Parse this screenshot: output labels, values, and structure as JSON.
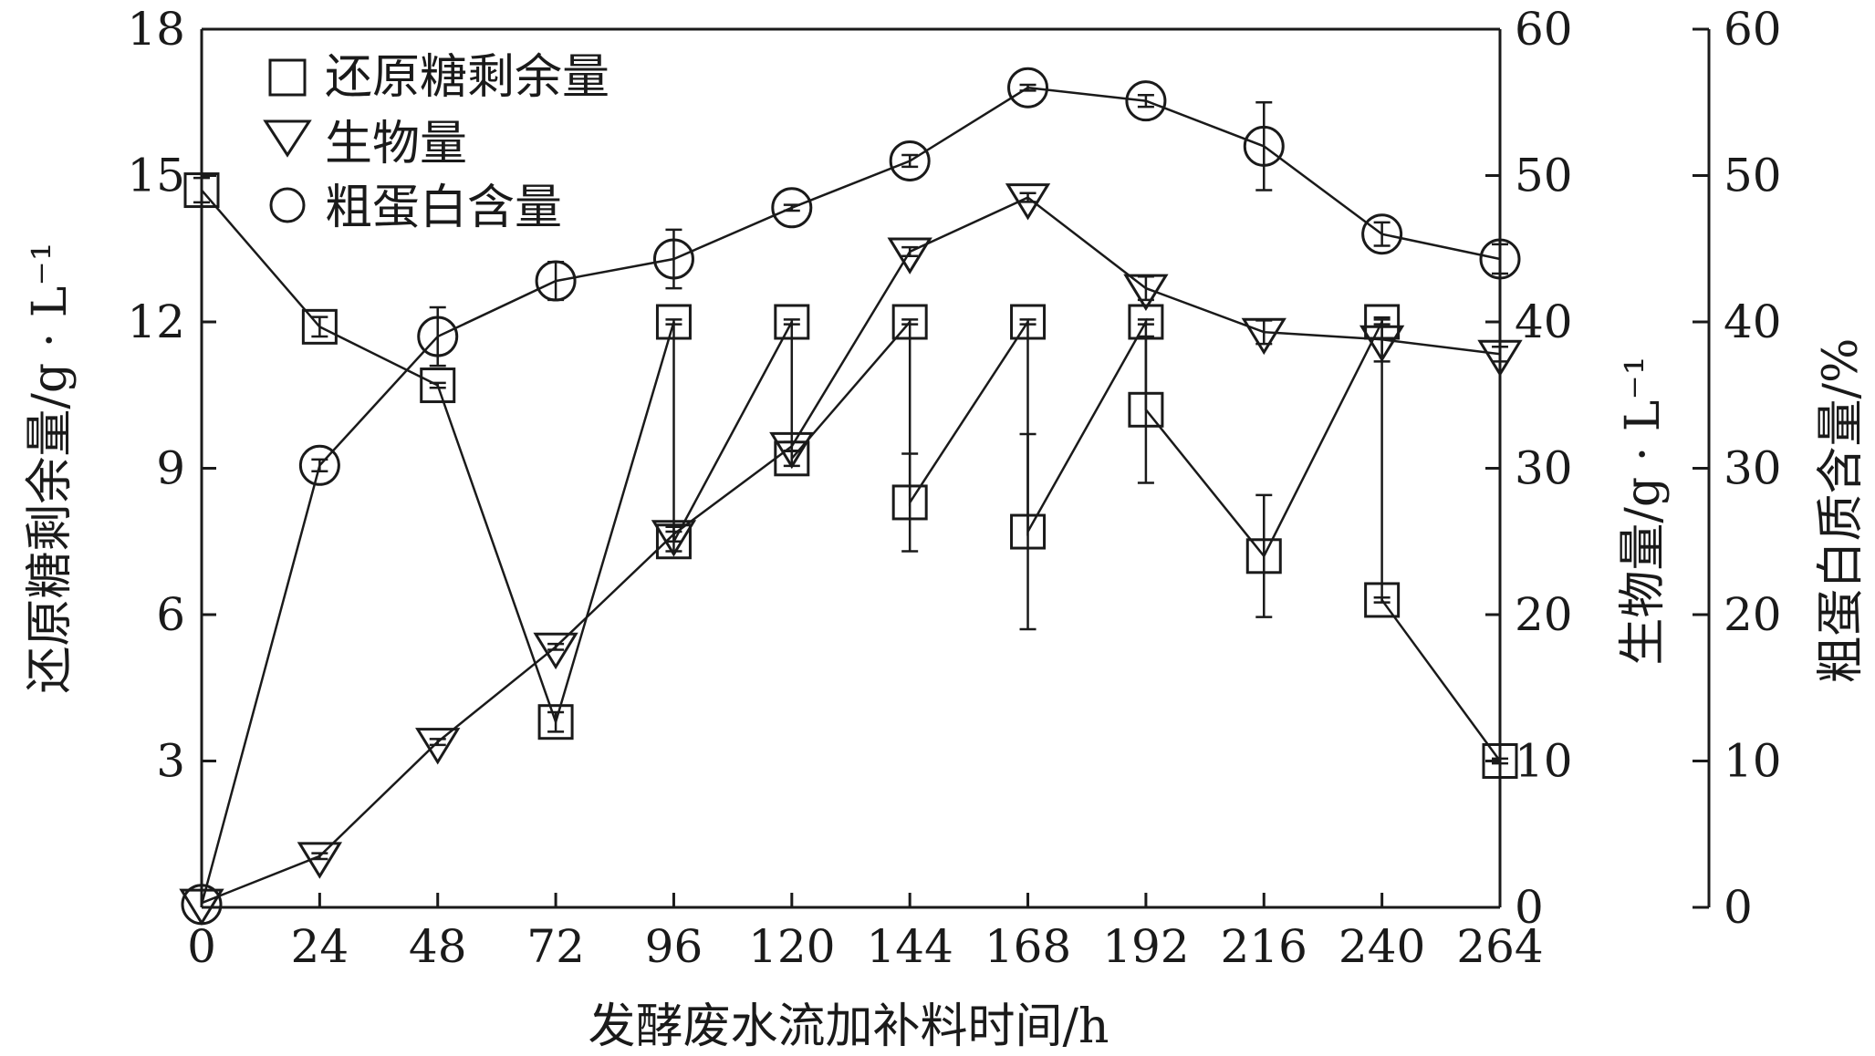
{
  "chart_data": {
    "type": "scatter",
    "xlabel": "发酵废水流加补料时间/h",
    "ylabel_left": "还原糖剩余量/g · L⁻¹",
    "ylabel_right1": "生物量/g · L⁻¹",
    "ylabel_right2": "粗蛋白质含量/%",
    "x": [
      0,
      24,
      48,
      72,
      96,
      120,
      144,
      168,
      192,
      216,
      240,
      264
    ],
    "x_ticks": [
      "0",
      "24",
      "48",
      "72",
      "96",
      "120",
      "144",
      "168",
      "192",
      "216",
      "240",
      "264"
    ],
    "xlim": [
      0,
      264
    ],
    "y_left": {
      "lim": [
        0,
        18
      ],
      "ticks": [
        "3",
        "6",
        "9",
        "12",
        "15",
        "18"
      ]
    },
    "y_right1": {
      "lim": [
        0,
        60
      ],
      "ticks": [
        "0",
        "10",
        "20",
        "30",
        "40",
        "50",
        "60"
      ]
    },
    "y_right2": {
      "lim": [
        0,
        60
      ],
      "ticks": [
        "0",
        "10",
        "20",
        "30",
        "40",
        "50",
        "60"
      ]
    },
    "legend_position": "top-left",
    "series": [
      {
        "name": "还原糖剩余量",
        "marker": "square",
        "axis": "left",
        "points": [
          {
            "x": 0,
            "y": 14.7,
            "err": 0.25
          },
          {
            "x": 24,
            "y": 11.9,
            "err": 0.2
          },
          {
            "x": 48,
            "y": 10.7,
            "err": 0.05
          },
          {
            "x": 72,
            "y": 3.8,
            "err": 0.2
          },
          {
            "x": 96,
            "y": 12.0,
            "err": 0.05
          },
          {
            "x": 96,
            "y": 7.5,
            "err": 0.2
          },
          {
            "x": 120,
            "y": 12.0,
            "err": 0.05
          },
          {
            "x": 120,
            "y": 9.2,
            "err": 0.15
          },
          {
            "x": 144,
            "y": 12.0,
            "err": 0.05
          },
          {
            "x": 144,
            "y": 8.3,
            "err": 1.0
          },
          {
            "x": 168,
            "y": 12.0,
            "err": 0.05
          },
          {
            "x": 168,
            "y": 7.7,
            "err": 2.0
          },
          {
            "x": 192,
            "y": 12.0,
            "err": 0.05
          },
          {
            "x": 192,
            "y": 10.2,
            "err": 1.5
          },
          {
            "x": 216,
            "y": 7.2,
            "err": 1.25
          },
          {
            "x": 240,
            "y": 12.0,
            "err": 0.05
          },
          {
            "x": 240,
            "y": 6.3,
            "err": 0.05
          },
          {
            "x": 264,
            "y": 3.0,
            "err": 0.05
          }
        ],
        "path": [
          [
            0,
            14.7
          ],
          [
            24,
            11.9
          ],
          [
            48,
            10.7
          ],
          [
            72,
            3.8
          ],
          [
            96,
            12.0
          ],
          [
            96,
            7.5
          ],
          [
            120,
            12.0
          ],
          [
            120,
            9.2
          ],
          [
            144,
            12.0
          ],
          [
            144,
            8.3
          ],
          [
            168,
            12.0
          ],
          [
            168,
            7.7
          ],
          [
            192,
            12.0
          ],
          [
            192,
            10.2
          ],
          [
            216,
            7.2
          ],
          [
            240,
            12.0
          ],
          [
            240,
            6.3
          ],
          [
            264,
            3.0
          ]
        ]
      },
      {
        "name": "生物量",
        "marker": "triangle-down",
        "axis": "right1",
        "points": [
          {
            "x": 0,
            "y": 0.3,
            "err": 0
          },
          {
            "x": 24,
            "y": 3.5,
            "err": 0.2
          },
          {
            "x": 48,
            "y": 11.3,
            "err": 0.2
          },
          {
            "x": 72,
            "y": 17.8,
            "err": 0.2
          },
          {
            "x": 96,
            "y": 25.5,
            "err": 0.5
          },
          {
            "x": 120,
            "y": 31.5,
            "err": 0.3
          },
          {
            "x": 144,
            "y": 44.8,
            "err": 0.3
          },
          {
            "x": 168,
            "y": 48.5,
            "err": 0.3
          },
          {
            "x": 192,
            "y": 42.3,
            "err": 0.8
          },
          {
            "x": 216,
            "y": 39.3,
            "err": 0.8
          },
          {
            "x": 240,
            "y": 38.8,
            "err": 1.5
          },
          {
            "x": 264,
            "y": 37.8,
            "err": 0.5
          }
        ]
      },
      {
        "name": "粗蛋白含量",
        "marker": "circle",
        "axis": "right2",
        "points": [
          {
            "x": 0,
            "y": 0.2,
            "err": 0
          },
          {
            "x": 24,
            "y": 30.2,
            "err": 0.4
          },
          {
            "x": 48,
            "y": 39.0,
            "err": 2.0
          },
          {
            "x": 72,
            "y": 42.8,
            "err": 1.3
          },
          {
            "x": 96,
            "y": 44.3,
            "err": 2.0
          },
          {
            "x": 120,
            "y": 47.8,
            "err": 0.2
          },
          {
            "x": 144,
            "y": 51.0,
            "err": 0.4
          },
          {
            "x": 168,
            "y": 56.0,
            "err": 0.2
          },
          {
            "x": 192,
            "y": 55.1,
            "err": 0.4
          },
          {
            "x": 216,
            "y": 52.0,
            "err": 3.0
          },
          {
            "x": 240,
            "y": 46.0,
            "err": 0.8
          },
          {
            "x": 264,
            "y": 44.3,
            "err": 1.0
          }
        ]
      }
    ]
  }
}
